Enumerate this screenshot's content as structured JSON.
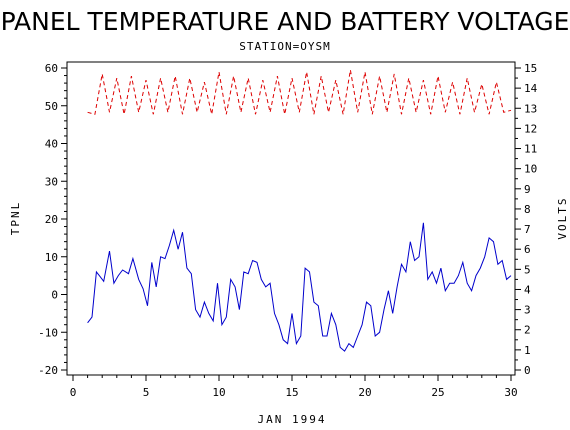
{
  "chart_data": {
    "type": "line",
    "title": "PANEL TEMPERATURE AND BATTERY VOLTAGE",
    "subtitle": "STATION=OYSM",
    "xlabel": "JAN 1994",
    "ylabel_left": "TPNL",
    "ylabel_right": "VOLTS",
    "xlim": [
      0,
      30
    ],
    "ylim_left": [
      -20,
      60
    ],
    "ylim_right": [
      0,
      15
    ],
    "x_ticks": [
      0,
      5,
      10,
      15,
      20,
      25,
      30
    ],
    "y_left_ticks": [
      -20,
      -10,
      0,
      10,
      20,
      30,
      40,
      50,
      60
    ],
    "y_right_ticks": [
      0,
      1,
      2,
      3,
      4,
      5,
      6,
      7,
      8,
      9,
      10,
      11,
      12,
      13,
      14,
      15
    ],
    "grid": false,
    "series": [
      {
        "name": "TPNL",
        "axis": "left",
        "color": "#0000cc",
        "style": "solid",
        "x": [
          1.0,
          1.3,
          1.6,
          1.8,
          2.1,
          2.5,
          2.8,
          3.1,
          3.4,
          3.8,
          4.1,
          4.5,
          4.8,
          5.1,
          5.4,
          5.7,
          6.0,
          6.3,
          6.6,
          6.9,
          7.2,
          7.5,
          7.8,
          8.1,
          8.4,
          8.7,
          9.0,
          9.3,
          9.6,
          9.9,
          10.2,
          10.5,
          10.8,
          11.1,
          11.4,
          11.7,
          12.0,
          12.3,
          12.6,
          12.9,
          13.2,
          13.5,
          13.8,
          14.1,
          14.4,
          14.7,
          15.0,
          15.3,
          15.6,
          15.9,
          16.2,
          16.5,
          16.8,
          17.1,
          17.4,
          17.7,
          18.0,
          18.3,
          18.6,
          18.9,
          19.2,
          19.5,
          19.8,
          20.1,
          20.4,
          20.7,
          21.0,
          21.3,
          21.6,
          21.9,
          22.2,
          22.5,
          22.8,
          23.1,
          23.4,
          23.7,
          24.0,
          24.3,
          24.6,
          24.9,
          25.2,
          25.5,
          25.8,
          26.1,
          26.4,
          26.7,
          27.0,
          27.3,
          27.6,
          27.9,
          28.2,
          28.5,
          28.8,
          29.1,
          29.4,
          29.7,
          30.0
        ],
        "y": [
          -7.5,
          -6,
          6,
          5,
          3.5,
          11.5,
          3,
          5,
          6.5,
          5.5,
          9.5,
          4,
          1.5,
          -3,
          8.5,
          2,
          10,
          9.5,
          13,
          17,
          12,
          16.5,
          7,
          5.5,
          -4,
          -6,
          -2,
          -5,
          -7,
          3,
          -8,
          -6,
          4,
          2,
          -4,
          6,
          5.5,
          9,
          8.5,
          4,
          2,
          3,
          -5,
          -8,
          -12,
          -13,
          -5,
          -13,
          -11,
          7,
          6,
          -2,
          -3,
          -11,
          -11,
          -5,
          -8,
          -14,
          -15,
          -13,
          -14,
          -11,
          -8,
          -2,
          -3,
          -11,
          -10,
          -4,
          1,
          -5,
          2,
          8,
          6,
          14,
          9,
          10,
          19,
          4,
          6,
          3,
          7,
          1,
          3,
          3,
          5,
          8.5,
          3,
          1,
          5,
          7,
          10,
          15,
          14,
          8,
          9,
          4,
          5
        ]
      },
      {
        "name": "VOLTS",
        "axis": "right",
        "color": "#dd0000",
        "style": "dashed",
        "x": [
          1.0,
          1.5,
          2.0,
          2.5,
          3.0,
          3.5,
          4.0,
          4.5,
          5.0,
          5.5,
          6.0,
          6.5,
          7.0,
          7.5,
          8.0,
          8.5,
          9.0,
          9.5,
          10.0,
          10.5,
          11.0,
          11.5,
          12.0,
          12.5,
          13.0,
          13.5,
          14.0,
          14.5,
          15.0,
          15.5,
          16.0,
          16.5,
          17.0,
          17.5,
          18.0,
          18.5,
          19.0,
          19.5,
          20.0,
          20.5,
          21.0,
          21.5,
          22.0,
          22.5,
          23.0,
          23.5,
          24.0,
          24.5,
          25.0,
          25.5,
          26.0,
          26.5,
          27.0,
          27.5,
          28.0,
          28.5,
          29.0,
          29.5,
          30.0
        ],
        "y": [
          12.8,
          12.7,
          14.7,
          12.8,
          14.5,
          12.7,
          14.6,
          12.8,
          14.4,
          12.7,
          14.5,
          12.8,
          14.6,
          12.7,
          14.5,
          12.8,
          14.3,
          12.7,
          14.8,
          12.7,
          14.6,
          12.8,
          14.5,
          12.7,
          14.4,
          12.8,
          14.6,
          12.7,
          14.5,
          12.8,
          14.8,
          12.7,
          14.6,
          12.8,
          14.4,
          12.7,
          14.9,
          12.8,
          14.8,
          12.7,
          14.6,
          12.8,
          14.7,
          12.7,
          14.5,
          12.8,
          14.4,
          12.7,
          14.6,
          12.8,
          14.3,
          12.7,
          14.5,
          12.8,
          14.2,
          12.7,
          14.3,
          12.8,
          12.9
        ]
      }
    ]
  }
}
